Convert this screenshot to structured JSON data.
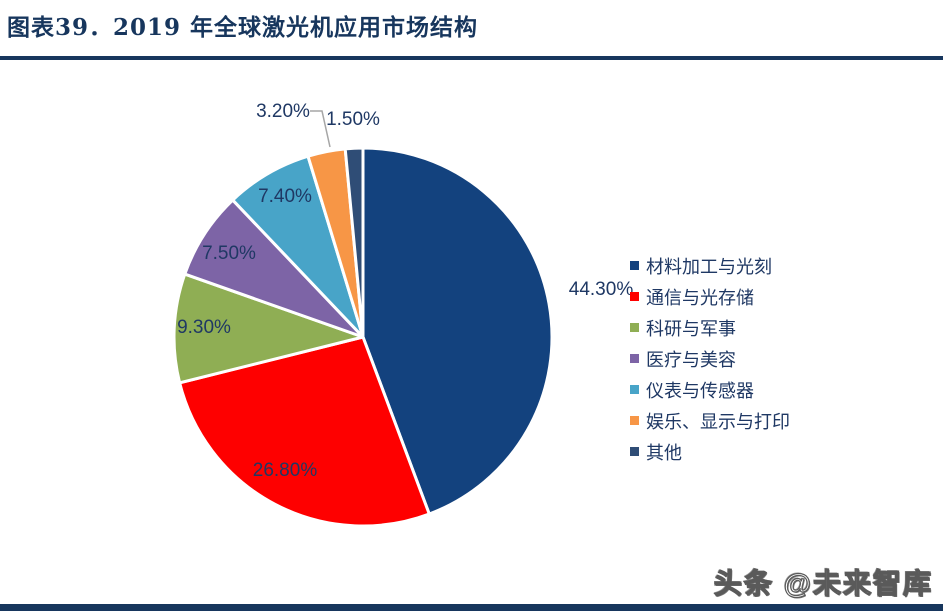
{
  "header": {
    "title": "图表39．2019 年全球激光机应用市场结构"
  },
  "chart_data": {
    "type": "pie",
    "title": "2019 年全球激光机应用市场结构",
    "categories": [
      "材料加工与光刻",
      "通信与光存储",
      "科研与军事",
      "医疗与美容",
      "仪表与传感器",
      "娱乐、显示与打印",
      "其他"
    ],
    "values": [
      44.3,
      26.8,
      9.3,
      7.5,
      7.4,
      3.2,
      1.5
    ],
    "labels": [
      "44.30%",
      "26.80%",
      "9.30%",
      "7.50%",
      "7.40%",
      "3.20%",
      "1.50%"
    ],
    "colors": [
      "#13427E",
      "#FE0000",
      "#8FAE54",
      "#7D64A6",
      "#48A4C8",
      "#F79646",
      "#2F4D76"
    ],
    "start_angle_deg": 0,
    "direction": "clockwise",
    "legend_position": "right",
    "label_color": "#1F3864",
    "slice_border_color": "#FFFFFF",
    "leader_line_color": "#A6A6A6"
  },
  "footer": {
    "watermark": "头条 @未来智库",
    "rule_color": "#17365D"
  }
}
